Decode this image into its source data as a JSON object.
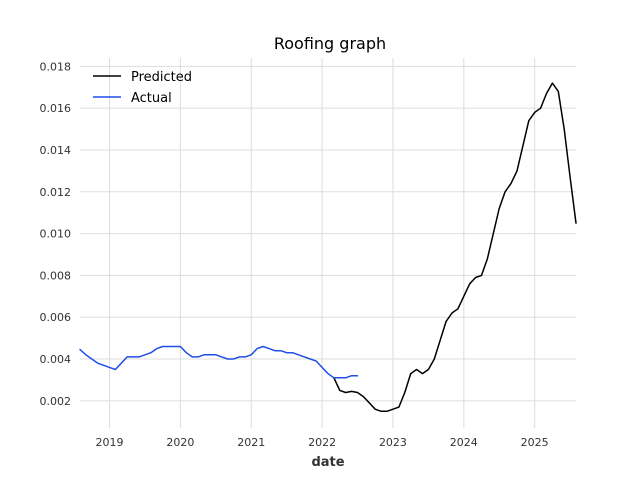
{
  "chart_data": {
    "type": "line",
    "title": "Roofing graph",
    "xlabel": "date",
    "ylabel": "",
    "x_tick_labels": [
      "2019",
      "2020",
      "2021",
      "2022",
      "2023",
      "2024",
      "2025"
    ],
    "y_tick_labels": [
      "0.002",
      "0.004",
      "0.006",
      "0.008",
      "0.010",
      "0.012",
      "0.014",
      "0.016",
      "0.018"
    ],
    "xlim": [
      "2018-08",
      "2025-08"
    ],
    "ylim": [
      0.0007,
      0.0184
    ],
    "grid": true,
    "legend_position": "top-left",
    "series": [
      {
        "name": "Predicted",
        "color": "#000000",
        "points": [
          [
            "2022-03",
            0.0031
          ],
          [
            "2022-04",
            0.0025
          ],
          [
            "2022-05",
            0.0024
          ],
          [
            "2022-06",
            0.00245
          ],
          [
            "2022-07",
            0.0024
          ],
          [
            "2022-08",
            0.0022
          ],
          [
            "2022-09",
            0.0019
          ],
          [
            "2022-10",
            0.0016
          ],
          [
            "2022-11",
            0.0015
          ],
          [
            "2022-12",
            0.0015
          ],
          [
            "2023-01",
            0.0016
          ],
          [
            "2023-02",
            0.0017
          ],
          [
            "2023-03",
            0.0024
          ],
          [
            "2023-04",
            0.0033
          ],
          [
            "2023-05",
            0.0035
          ],
          [
            "2023-06",
            0.0033
          ],
          [
            "2023-07",
            0.0035
          ],
          [
            "2023-08",
            0.004
          ],
          [
            "2023-09",
            0.0049
          ],
          [
            "2023-10",
            0.0058
          ],
          [
            "2023-11",
            0.0062
          ],
          [
            "2023-12",
            0.0064
          ],
          [
            "2024-01",
            0.007
          ],
          [
            "2024-02",
            0.0076
          ],
          [
            "2024-03",
            0.0079
          ],
          [
            "2024-04",
            0.008
          ],
          [
            "2024-05",
            0.0088
          ],
          [
            "2024-06",
            0.01
          ],
          [
            "2024-07",
            0.0112
          ],
          [
            "2024-08",
            0.012
          ],
          [
            "2024-09",
            0.0124
          ],
          [
            "2024-10",
            0.013
          ],
          [
            "2024-11",
            0.0142
          ],
          [
            "2024-12",
            0.0154
          ],
          [
            "2025-01",
            0.0158
          ],
          [
            "2025-02",
            0.016
          ],
          [
            "2025-03",
            0.0167
          ],
          [
            "2025-04",
            0.0172
          ],
          [
            "2025-05",
            0.0168
          ],
          [
            "2025-06",
            0.015
          ],
          [
            "2025-07",
            0.0127
          ],
          [
            "2025-08",
            0.0105
          ]
        ]
      },
      {
        "name": "Actual",
        "color": "#1f4ee8",
        "points": [
          [
            "2018-08",
            0.00445
          ],
          [
            "2018-09",
            0.0042
          ],
          [
            "2018-10",
            0.004
          ],
          [
            "2018-11",
            0.0038
          ],
          [
            "2018-12",
            0.0037
          ],
          [
            "2019-01",
            0.0036
          ],
          [
            "2019-02",
            0.0035
          ],
          [
            "2019-03",
            0.0038
          ],
          [
            "2019-04",
            0.0041
          ],
          [
            "2019-05",
            0.0041
          ],
          [
            "2019-06",
            0.0041
          ],
          [
            "2019-07",
            0.0042
          ],
          [
            "2019-08",
            0.0043
          ],
          [
            "2019-09",
            0.0045
          ],
          [
            "2019-10",
            0.0046
          ],
          [
            "2019-11",
            0.0046
          ],
          [
            "2019-12",
            0.0046
          ],
          [
            "2020-01",
            0.0046
          ],
          [
            "2020-02",
            0.0043
          ],
          [
            "2020-03",
            0.0041
          ],
          [
            "2020-04",
            0.0041
          ],
          [
            "2020-05",
            0.0042
          ],
          [
            "2020-06",
            0.0042
          ],
          [
            "2020-07",
            0.0042
          ],
          [
            "2020-08",
            0.0041
          ],
          [
            "2020-09",
            0.004
          ],
          [
            "2020-10",
            0.004
          ],
          [
            "2020-11",
            0.0041
          ],
          [
            "2020-12",
            0.0041
          ],
          [
            "2021-01",
            0.0042
          ],
          [
            "2021-02",
            0.0045
          ],
          [
            "2021-03",
            0.0046
          ],
          [
            "2021-04",
            0.0045
          ],
          [
            "2021-05",
            0.0044
          ],
          [
            "2021-06",
            0.0044
          ],
          [
            "2021-07",
            0.0043
          ],
          [
            "2021-08",
            0.0043
          ],
          [
            "2021-09",
            0.0042
          ],
          [
            "2021-10",
            0.0041
          ],
          [
            "2021-11",
            0.004
          ],
          [
            "2021-12",
            0.0039
          ],
          [
            "2022-01",
            0.0036
          ],
          [
            "2022-02",
            0.0033
          ],
          [
            "2022-03",
            0.0031
          ],
          [
            "2022-04",
            0.0031
          ],
          [
            "2022-05",
            0.0031
          ],
          [
            "2022-06",
            0.0032
          ],
          [
            "2022-07",
            0.0032
          ]
        ]
      }
    ]
  }
}
